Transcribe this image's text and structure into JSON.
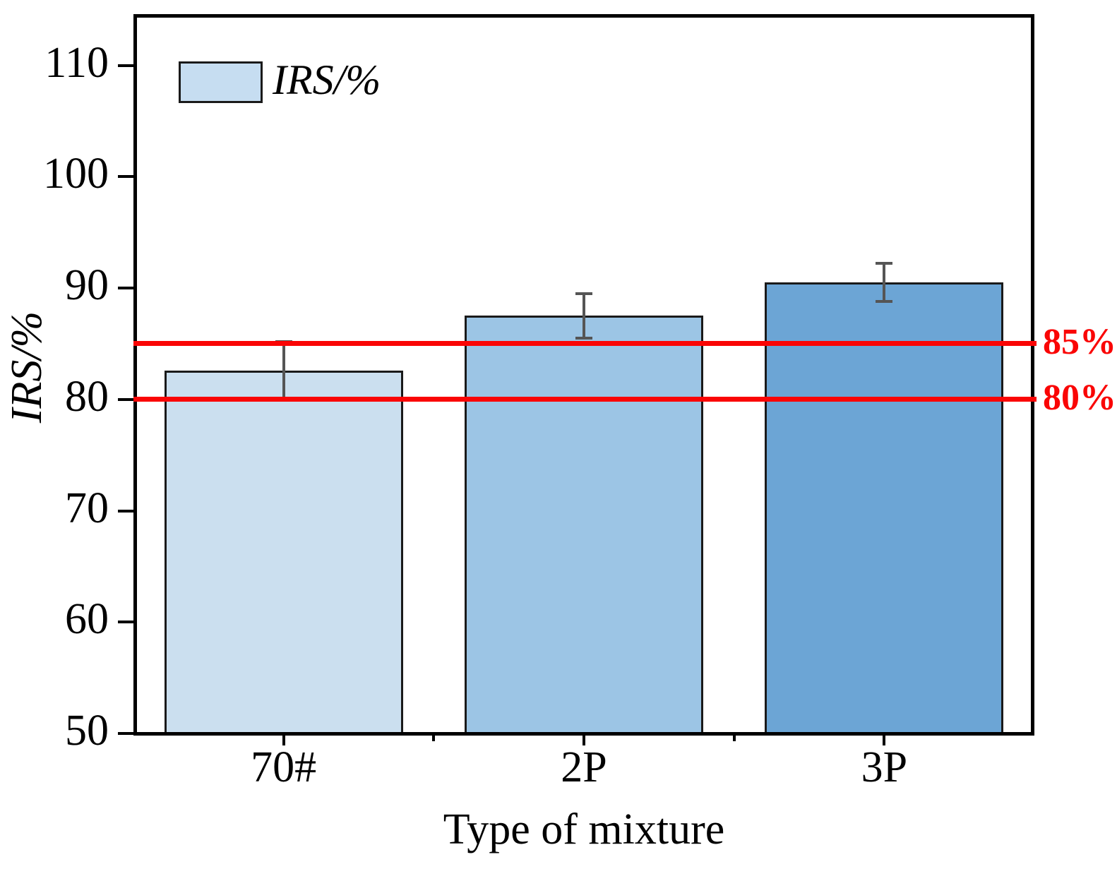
{
  "figure": {
    "background": "#ffffff"
  },
  "chart_data": {
    "type": "bar",
    "title": "",
    "categories": [
      "70#",
      "2P",
      "3P"
    ],
    "series": [
      {
        "name": "IRS/%",
        "values": [
          82.6,
          87.5,
          90.5
        ],
        "errors": [
          2.6,
          2.0,
          1.7
        ]
      }
    ],
    "bar_colors": [
      "#cbdfef",
      "#9cc5e5",
      "#6ca5d5"
    ],
    "bar_edge_color": "#1a1a1a",
    "error_bar_color": "#555555",
    "xlabel": "Type of mixture",
    "ylabel": "IRS/%",
    "ylim": [
      50,
      114.6
    ],
    "yticks": [
      50,
      60,
      70,
      80,
      90,
      100,
      110
    ],
    "grid": false,
    "legend": {
      "label": "IRS/%",
      "swatch_color": "#c6ddf1",
      "position": "top-left"
    },
    "reference_lines": [
      {
        "label": "85%",
        "value": 85,
        "color": "#fa0505"
      },
      {
        "label": "80%",
        "value": 80,
        "color": "#fa0505"
      }
    ],
    "axis_color": "#000000"
  }
}
